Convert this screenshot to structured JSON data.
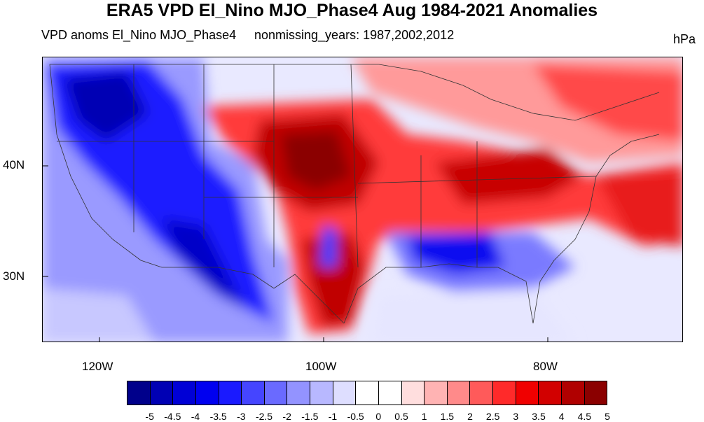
{
  "title": "ERA5 VPD El_Nino MJO_Phase4 Aug 1984-2021 Anomalies",
  "left_subtitle": "VPD anoms El_Nino MJO_Phase4",
  "center_subtitle": "nonmissing_years: 1987,2002,2012",
  "units": "hPa",
  "map": {
    "lat_labels": [
      "40N",
      "30N"
    ],
    "lon_labels": [
      "120W",
      "100W",
      "80W"
    ]
  },
  "colorbar": {
    "labels": [
      "-5",
      "-4.5",
      "-4",
      "-3.5",
      "-3",
      "-2.5",
      "-2",
      "-1.5",
      "-1",
      "-0.5",
      "0",
      "0.5",
      "1",
      "1.5",
      "2",
      "2.5",
      "3",
      "3.5",
      "4",
      "4.5",
      "5"
    ],
    "colors": [
      "#00008b",
      "#0000b4",
      "#0000d6",
      "#0000f0",
      "#1a1aff",
      "#4545ff",
      "#6a6aff",
      "#9393ff",
      "#b8b8ff",
      "#dedeff",
      "#ffffff",
      "#ffffff",
      "#ffdede",
      "#ffb3b3",
      "#ff8a8a",
      "#ff5a5a",
      "#ff2a2a",
      "#f00000",
      "#d20000",
      "#b00000",
      "#8b0000"
    ]
  }
}
